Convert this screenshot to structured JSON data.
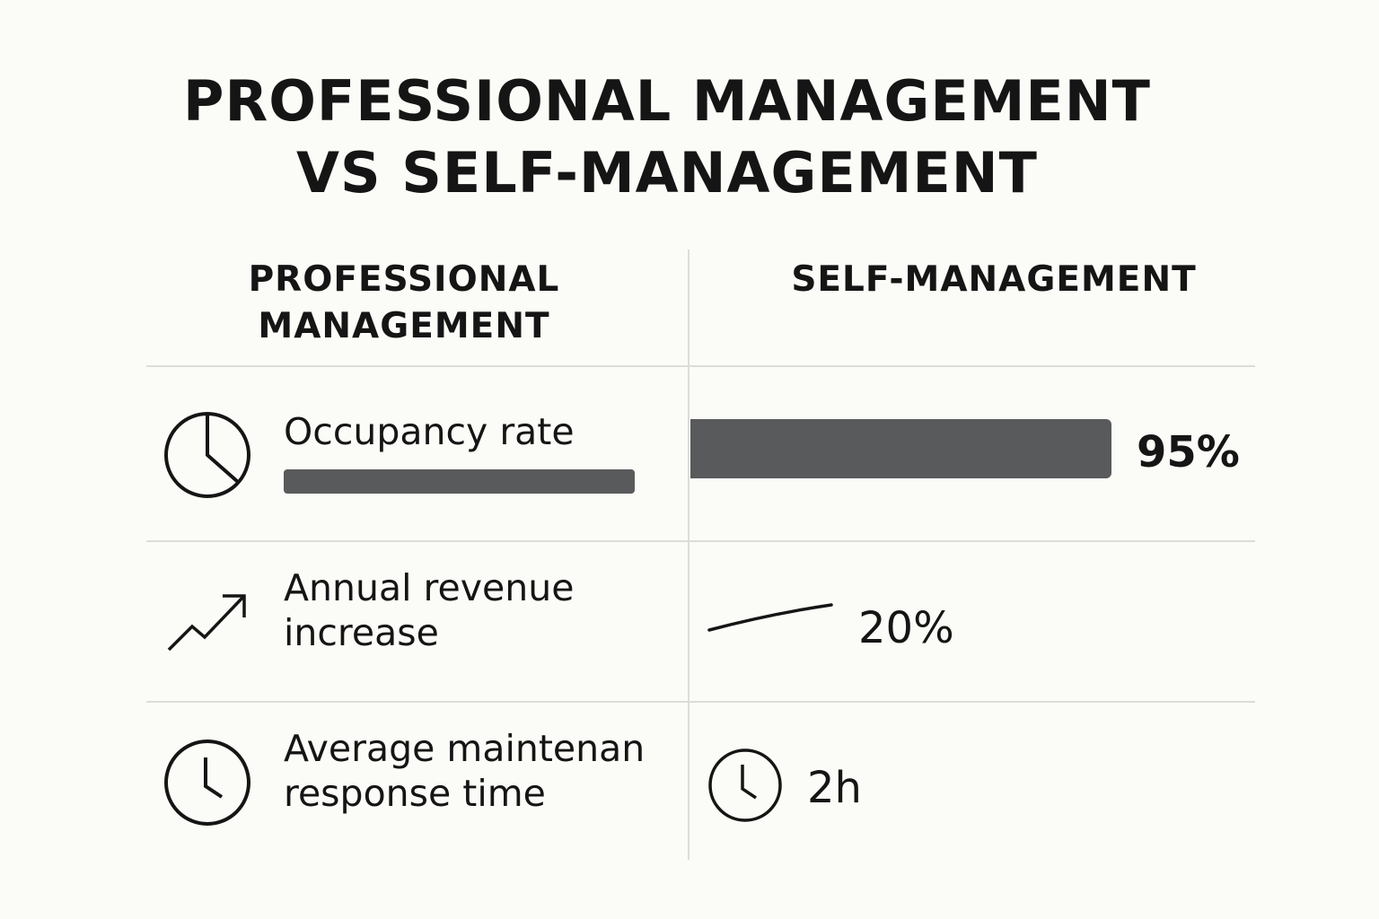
{
  "title": {
    "line1": "PROFESSIONAL MANAGEMENT",
    "line2": "VS SELF-MANAGEMENT"
  },
  "columns": {
    "professional": {
      "line1": "PROFESSIONAL",
      "line2": "MANAGEMENT"
    },
    "self": "SELF-MANAGEMENT"
  },
  "rows": [
    {
      "icon": "pie-chart-icon",
      "label": "Occupancy rate",
      "self_value": "95%",
      "self_bar_fraction": 0.95
    },
    {
      "icon": "trend-up-icon",
      "label_line1": "Annual revenue",
      "label_line2": "increase",
      "self_value": "20%",
      "self_icon": "flat-trend-line-icon"
    },
    {
      "icon": "clock-icon",
      "label_line1": "Average maintenan",
      "label_line2": "response time",
      "self_value": "2h",
      "self_icon": "clock-icon"
    }
  ],
  "colors": {
    "background": "#fbfbf7",
    "text": "#151515",
    "bar": "#585a5b",
    "divider": "#dcdcd8"
  }
}
